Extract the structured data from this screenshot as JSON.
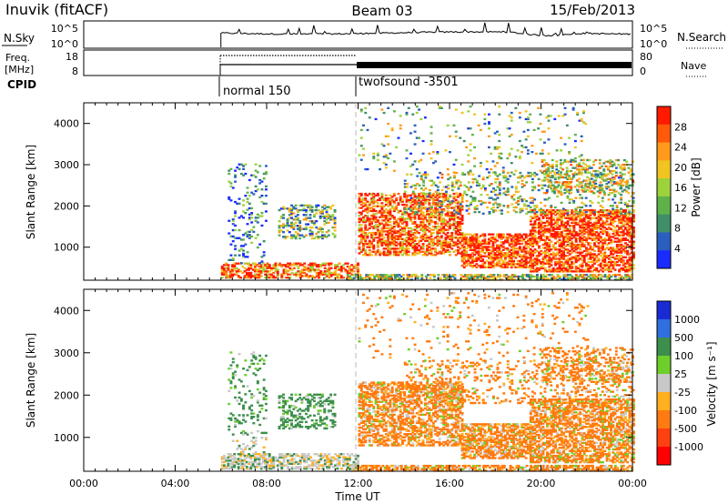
{
  "header": {
    "station": "Inuvik (fitACF)",
    "beam": "Beam 03",
    "date": "15/Feb/2013"
  },
  "panels": {
    "nsky": {
      "label": "N.Sky",
      "ticks_left": [
        "10^5",
        "10^0"
      ],
      "ticks_right": [
        "10^5",
        "10^0"
      ],
      "right_label": "N.Search"
    },
    "freq": {
      "label_1": "Freq.",
      "label_2": "[MHz]",
      "ticks_left": [
        "18",
        "8"
      ],
      "ticks_right": [
        "80",
        "0"
      ],
      "right_label": "Nave"
    },
    "cpid": {
      "label": "CPID",
      "modes": [
        "normal 150",
        "twofsound -3501"
      ]
    }
  },
  "chart_data": [
    {
      "type": "heatmap",
      "title": "",
      "ylabel": "Slant Range [km]",
      "ylim": [
        200,
        4500
      ],
      "yticks": [
        1000,
        2000,
        3000,
        4000
      ],
      "xlim": [
        0,
        24
      ],
      "colorbar": {
        "label": "Power [dB]",
        "ticks": [
          "4",
          "8",
          "12",
          "16",
          "20",
          "24",
          "28"
        ],
        "colors": [
          "#1a2bff",
          "#2a5fbf",
          "#3f8f6a",
          "#5fb24a",
          "#9ed23c",
          "#f2c422",
          "#ff9a1a",
          "#ff5a0a",
          "#ff1a00"
        ]
      }
    },
    {
      "type": "heatmap",
      "title": "",
      "ylabel": "Slant Range [km]",
      "ylim": [
        200,
        4500
      ],
      "yticks": [
        1000,
        2000,
        3000,
        4000
      ],
      "xlim": [
        0,
        24
      ],
      "xlabel": "Time UT",
      "xticks": [
        "00:00",
        "04:00",
        "08:00",
        "12:00",
        "16:00",
        "20:00",
        "00:00"
      ],
      "colorbar": {
        "label": "Velocity [m s⁻¹]",
        "ticks": [
          "1000",
          "500",
          "100",
          "25",
          "-25",
          "-100",
          "-500",
          "-1000"
        ],
        "colors": [
          "#1a2bd6",
          "#2f6fe0",
          "#3d8f4d",
          "#6fcf2a",
          "#c8c8c8",
          "#ffb020",
          "#ff7a10",
          "#ff4010",
          "#ff0000"
        ]
      }
    }
  ]
}
